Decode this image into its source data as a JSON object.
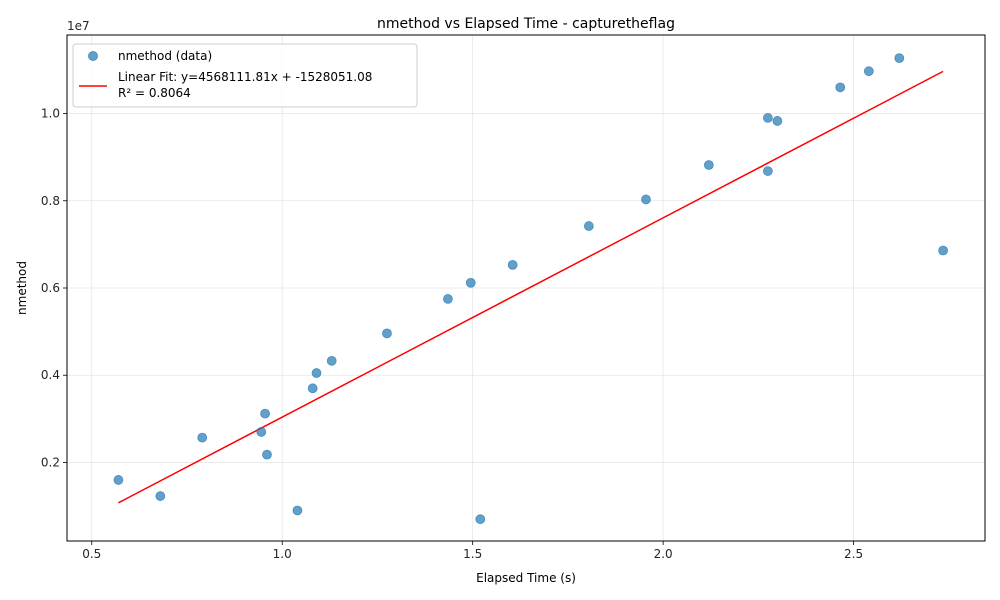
{
  "chart_data": {
    "type": "scatter",
    "title": "nmethod vs Elapsed Time - capturetheflag",
    "xlabel": "Elapsed Time (s)",
    "ylabel": "nmethod",
    "offset_text": "1e7",
    "xlim": [
      0.435,
      2.845
    ],
    "ylim": [
      200000,
      11800000
    ],
    "x_ticks": [
      0.5,
      1.0,
      1.5,
      2.0,
      2.5
    ],
    "x_tick_labels": [
      "0.5",
      "1.0",
      "1.5",
      "2.0",
      "2.5"
    ],
    "y_ticks": [
      2000000,
      4000000,
      6000000,
      8000000,
      10000000
    ],
    "y_tick_labels": [
      "0.2",
      "0.4",
      "0.6",
      "0.8",
      "1.0"
    ],
    "grid": true,
    "legend_position": "top-left",
    "colors": {
      "points": "#1f77b4",
      "fit": "#ff0000",
      "grid": "#e5e5e5"
    },
    "series": [
      {
        "name": "nmethod (data)",
        "kind": "scatter",
        "x": [
          0.57,
          0.68,
          0.79,
          0.945,
          0.955,
          0.96,
          1.04,
          1.08,
          1.09,
          1.13,
          1.275,
          1.435,
          1.495,
          1.52,
          1.605,
          1.805,
          1.955,
          2.12,
          2.275,
          2.275,
          2.3,
          2.465,
          2.54,
          2.62,
          2.735
        ],
        "y": [
          1600000,
          1230000,
          2570000,
          2700000,
          3120000,
          2180000,
          900000,
          3700000,
          4050000,
          4330000,
          4960000,
          5750000,
          6120000,
          700000,
          6530000,
          7420000,
          8030000,
          8820000,
          9900000,
          8680000,
          9830000,
          10600000,
          10970000,
          11270000,
          6860000
        ]
      },
      {
        "name": "Linear Fit: y=4568111.81x + -1528051.08",
        "name_line2": "R² = 0.8064",
        "kind": "line",
        "slope": 4568111.81,
        "intercept": -1528051.08,
        "x_range": [
          0.57,
          2.735
        ]
      }
    ]
  }
}
